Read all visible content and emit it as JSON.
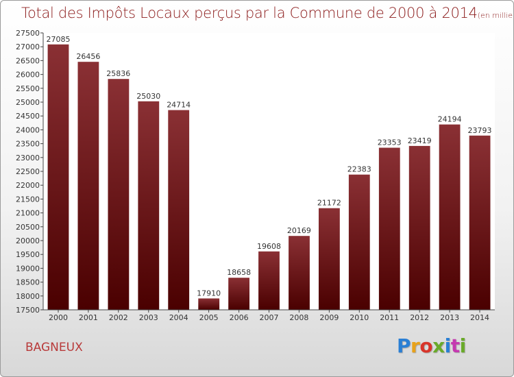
{
  "header": {
    "title": "Total des Impôts Locaux perçus par la Commune de 2000 à 2014",
    "unit": "(en milliers d'€)"
  },
  "footer": {
    "commune": "BAGNEUX",
    "logo_letters": [
      "P",
      "r",
      "o",
      "x",
      "i",
      "t",
      "i"
    ]
  },
  "colors": {
    "title": "#8b1a1a",
    "bar_top": "#8a3034",
    "bar_bottom": "#4a0000",
    "commune": "#b83a3a"
  },
  "chart_data": {
    "type": "bar",
    "categories": [
      "2000",
      "2001",
      "2002",
      "2003",
      "2004",
      "2005",
      "2006",
      "2007",
      "2008",
      "2009",
      "2010",
      "2011",
      "2012",
      "2013",
      "2014"
    ],
    "values": [
      27085,
      26456,
      25836,
      25030,
      24714,
      17910,
      18658,
      19608,
      20169,
      21172,
      22383,
      23353,
      23419,
      24194,
      23793
    ],
    "title": "Total des Impôts Locaux perçus par la Commune de 2000 à 2014",
    "ylim": [
      17500,
      27500
    ],
    "ytick_step": 500,
    "grid": false,
    "legend": "none"
  }
}
